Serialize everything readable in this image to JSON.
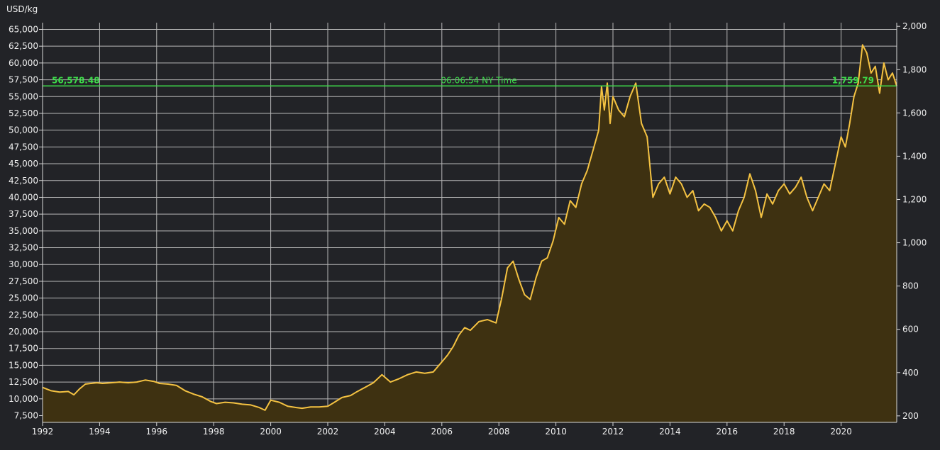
{
  "chart_data": {
    "type": "area",
    "y_unit_label": "USD/kg",
    "x_tick_labels": [
      "1992",
      "1994",
      "1996",
      "1998",
      "2000",
      "2002",
      "2004",
      "2006",
      "2008",
      "2010",
      "2012",
      "2014",
      "2016",
      "2018",
      "2020"
    ],
    "y_left_ticks": [
      "7,500",
      "10,000",
      "12,500",
      "15,000",
      "17,500",
      "20,000",
      "22,500",
      "25,000",
      "27,500",
      "30,000",
      "32,500",
      "35,000",
      "37,500",
      "40,000",
      "42,500",
      "45,000",
      "47,500",
      "50,000",
      "52,500",
      "55,000",
      "57,500",
      "60,000",
      "62,500",
      "65,000"
    ],
    "y_right_ticks": [
      "200",
      "400",
      "600",
      "800",
      "1,000",
      "1,200",
      "1,400",
      "1,600",
      "1,800",
      "2,000"
    ],
    "ylim_left": [
      6500,
      66000
    ],
    "ylim_right": [
      170,
      2017
    ],
    "xlim": [
      1992.0,
      2021.95
    ],
    "reference_line": {
      "value_left_label": "56,578.48",
      "center_label": "06:06:54 NY Time",
      "value_right_label": "1,759.79",
      "value": 56578.48
    },
    "colors": {
      "line": "#f4c242",
      "area": "#3e3111",
      "reference": "#3ddc4a",
      "grid": "#b8b8b8",
      "background": "#222327"
    },
    "series": [
      {
        "x": [
          1992.0,
          1992.3,
          1992.6,
          1992.9,
          1993.1,
          1993.3,
          1993.5,
          1993.7,
          1993.9,
          1994.1,
          1994.4,
          1994.7,
          1995.0,
          1995.3,
          1995.6,
          1995.9,
          1996.1,
          1996.4,
          1996.7,
          1997.0,
          1997.3,
          1997.6,
          1997.9,
          1998.1,
          1998.4,
          1998.7,
          1999.0,
          1999.3,
          1999.6,
          1999.8,
          2000.0,
          2000.3,
          2000.6,
          2000.9,
          2001.1,
          2001.4,
          2001.7,
          2002.0,
          2002.2,
          2002.5,
          2002.8,
          2003.0,
          2003.3,
          2003.6,
          2003.9,
          2004.2,
          2004.5,
          2004.8,
          2005.1,
          2005.4,
          2005.7,
          2006.0,
          2006.2,
          2006.4,
          2006.6,
          2006.8,
          2007.0,
          2007.3,
          2007.6,
          2007.9,
          2008.1,
          2008.3,
          2008.5,
          2008.7,
          2008.9,
          2009.1,
          2009.3,
          2009.5,
          2009.7,
          2009.9,
          2010.1,
          2010.3,
          2010.5,
          2010.7,
          2010.9,
          2011.1,
          2011.3,
          2011.5,
          2011.6,
          2011.7,
          2011.8,
          2011.9,
          2012.0,
          2012.2,
          2012.4,
          2012.6,
          2012.8,
          2013.0,
          2013.2,
          2013.4,
          2013.6,
          2013.8,
          2014.0,
          2014.2,
          2014.4,
          2014.6,
          2014.8,
          2015.0,
          2015.2,
          2015.4,
          2015.6,
          2015.8,
          2016.0,
          2016.2,
          2016.4,
          2016.6,
          2016.8,
          2017.0,
          2017.2,
          2017.4,
          2017.6,
          2017.8,
          2018.0,
          2018.2,
          2018.4,
          2018.6,
          2018.8,
          2019.0,
          2019.2,
          2019.4,
          2019.6,
          2019.8,
          2020.0,
          2020.15,
          2020.3,
          2020.45,
          2020.6,
          2020.75,
          2020.9,
          2021.05,
          2021.2,
          2021.35,
          2021.5,
          2021.65,
          2021.8,
          2021.95
        ],
        "values": [
          11700,
          11200,
          11000,
          11100,
          10600,
          11500,
          12200,
          12300,
          12400,
          12300,
          12400,
          12500,
          12400,
          12500,
          12800,
          12600,
          12300,
          12200,
          12000,
          11200,
          10700,
          10300,
          9600,
          9300,
          9500,
          9400,
          9200,
          9100,
          8700,
          8300,
          9800,
          9500,
          8900,
          8700,
          8600,
          8800,
          8800,
          8900,
          9400,
          10200,
          10500,
          11000,
          11700,
          12400,
          13600,
          12500,
          13000,
          13600,
          14000,
          13800,
          14000,
          15500,
          16500,
          17800,
          19500,
          20600,
          20200,
          21500,
          21800,
          21300,
          25000,
          29500,
          30500,
          27800,
          25500,
          24800,
          28000,
          30500,
          31000,
          33500,
          37000,
          36000,
          39500,
          38500,
          42000,
          44000,
          47000,
          50000,
          56500,
          53000,
          57000,
          51000,
          55000,
          53000,
          52000,
          55000,
          57000,
          51000,
          49000,
          40000,
          42000,
          43000,
          40500,
          43000,
          42000,
          40000,
          41000,
          38000,
          39000,
          38500,
          37000,
          35000,
          36500,
          35000,
          38000,
          40000,
          43500,
          41000,
          37000,
          40500,
          39000,
          41000,
          42000,
          40500,
          41500,
          43000,
          40000,
          38000,
          40000,
          42000,
          41000,
          45000,
          49000,
          47500,
          51000,
          55000,
          57000,
          62700,
          61500,
          58500,
          59500,
          55500,
          60000,
          57500,
          58500,
          56578
        ]
      }
    ]
  }
}
